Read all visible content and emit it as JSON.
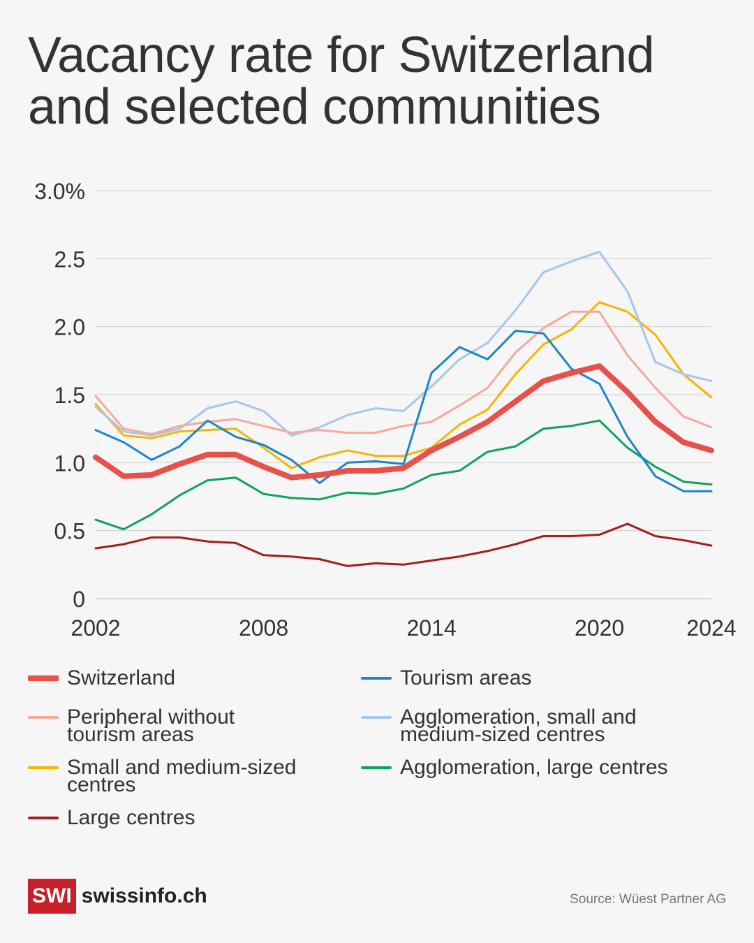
{
  "title": "Vacancy rate for Switzerland and selected communities",
  "source": "Source: Wüest Partner AG",
  "brand": {
    "logo": "SWI",
    "name": "swissinfo.ch",
    "color": "#c8202a"
  },
  "chart_data": {
    "type": "line",
    "title": "Vacancy rate for Switzerland and selected communities",
    "xlabel": "",
    "ylabel": "",
    "x": [
      2002,
      2003,
      2004,
      2005,
      2006,
      2007,
      2008,
      2009,
      2010,
      2011,
      2012,
      2013,
      2014,
      2015,
      2016,
      2017,
      2018,
      2019,
      2020,
      2021,
      2022,
      2023,
      2024
    ],
    "x_ticks": [
      2002,
      2008,
      2014,
      2020,
      2024
    ],
    "y_ticks": [
      {
        "v": 0,
        "label": "0"
      },
      {
        "v": 0.5,
        "label": "0.5"
      },
      {
        "v": 1,
        "label": "1.0"
      },
      {
        "v": 1.5,
        "label": "1.5"
      },
      {
        "v": 2,
        "label": "2.0"
      },
      {
        "v": 2.5,
        "label": "2.5"
      },
      {
        "v": 3,
        "label": "3.0%"
      }
    ],
    "ylim": [
      0,
      3
    ],
    "grid": true,
    "legend_position": "bottom",
    "series": [
      {
        "name": "Switzerland",
        "color": "#e8504a",
        "width": 8,
        "values": [
          1.04,
          0.9,
          0.91,
          0.99,
          1.06,
          1.06,
          0.97,
          0.89,
          0.91,
          0.94,
          0.94,
          0.96,
          1.09,
          1.19,
          1.3,
          1.45,
          1.6,
          1.66,
          1.71,
          1.52,
          1.3,
          1.15,
          1.09
        ]
      },
      {
        "name": "Tourism areas",
        "color": "#1a86c8",
        "width": 3,
        "values": [
          1.24,
          1.15,
          1.02,
          1.12,
          1.31,
          1.19,
          1.13,
          1.02,
          0.85,
          1.0,
          1.01,
          0.99,
          1.66,
          1.85,
          1.76,
          1.97,
          1.95,
          1.69,
          1.58,
          1.19,
          0.9,
          0.79,
          0.79
        ]
      },
      {
        "name": "Peripheral without tourism areas",
        "color": "#f4a99c",
        "width": 3,
        "values": [
          1.49,
          1.25,
          1.21,
          1.27,
          1.3,
          1.32,
          1.27,
          1.22,
          1.24,
          1.22,
          1.22,
          1.27,
          1.3,
          1.42,
          1.55,
          1.81,
          1.99,
          2.11,
          2.11,
          1.79,
          1.55,
          1.34,
          1.26
        ]
      },
      {
        "name": "Agglomeration, small and medium-sized centres",
        "color": "#a6c6ec",
        "width": 3,
        "values": [
          1.41,
          1.23,
          1.2,
          1.25,
          1.4,
          1.45,
          1.38,
          1.2,
          1.26,
          1.35,
          1.4,
          1.38,
          1.56,
          1.76,
          1.88,
          2.12,
          2.4,
          2.48,
          2.55,
          2.26,
          1.74,
          1.65,
          1.6
        ]
      },
      {
        "name": "Small and medium-sized centres",
        "color": "#f7b500",
        "width": 3,
        "values": [
          1.43,
          1.2,
          1.18,
          1.23,
          1.24,
          1.25,
          1.11,
          0.96,
          1.04,
          1.09,
          1.05,
          1.05,
          1.11,
          1.28,
          1.39,
          1.65,
          1.87,
          1.98,
          2.18,
          2.11,
          1.94,
          1.65,
          1.48
        ]
      },
      {
        "name": "Agglomeration, large centres",
        "color": "#0ea35a",
        "width": 3,
        "values": [
          0.58,
          0.51,
          0.62,
          0.76,
          0.87,
          0.89,
          0.77,
          0.74,
          0.73,
          0.78,
          0.77,
          0.81,
          0.91,
          0.94,
          1.08,
          1.12,
          1.25,
          1.27,
          1.31,
          1.11,
          0.97,
          0.86,
          0.84
        ]
      },
      {
        "name": "Large centres",
        "color": "#a51c1c",
        "width": 3,
        "values": [
          0.37,
          0.4,
          0.45,
          0.45,
          0.42,
          0.41,
          0.32,
          0.31,
          0.29,
          0.24,
          0.26,
          0.25,
          0.28,
          0.31,
          0.35,
          0.4,
          0.46,
          0.46,
          0.47,
          0.55,
          0.46,
          0.43,
          0.39
        ]
      }
    ]
  },
  "legend": [
    {
      "label": "Switzerland",
      "series": 0
    },
    {
      "label": "Tourism areas",
      "series": 1
    },
    {
      "label": "Peripheral without tourism areas",
      "series": 2
    },
    {
      "label": "Agglomeration, small and medium-sized centres",
      "series": 3
    },
    {
      "label": "Small and medium-sized centres",
      "series": 4
    },
    {
      "label": "Agglomeration, large centres",
      "series": 5
    },
    {
      "label": "Large centres",
      "series": 6
    }
  ]
}
